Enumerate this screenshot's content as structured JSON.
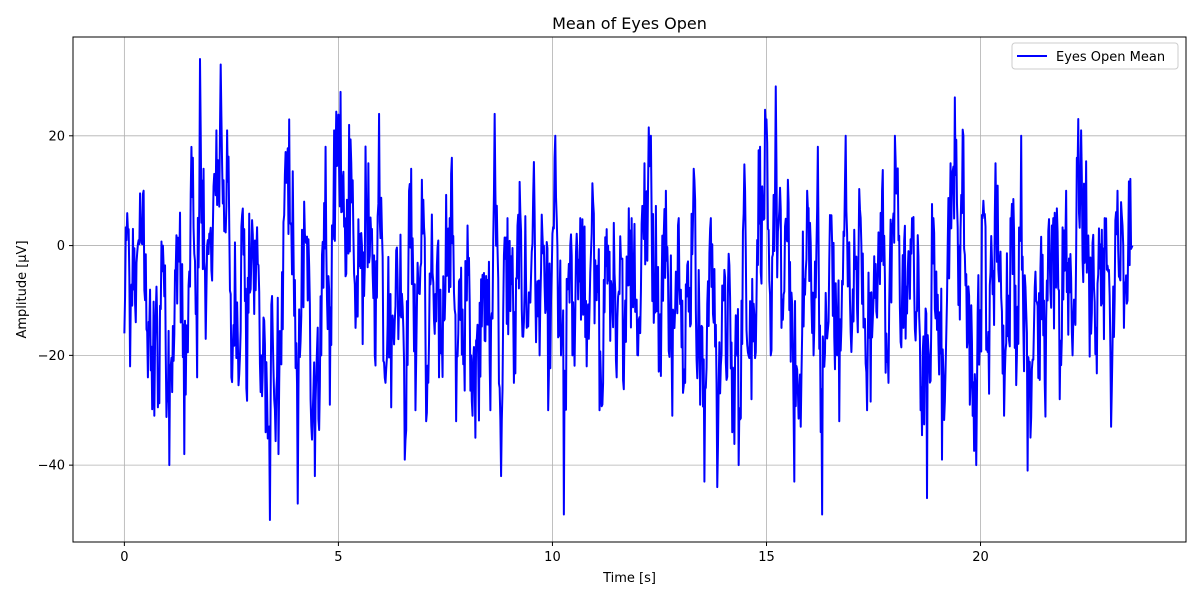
{
  "chart_data": {
    "type": "line",
    "title": "Mean of Eyes Open",
    "xlabel": "Time [s]",
    "ylabel": "Amplitude [µV]",
    "xlim": [
      -1.2,
      24.8
    ],
    "ylim": [
      -54,
      38
    ],
    "xticks": [
      0,
      5,
      10,
      15,
      20
    ],
    "yticks": [
      -40,
      -20,
      0,
      20
    ],
    "xtick_labels": [
      "0",
      "5",
      "10",
      "15",
      "20"
    ],
    "ytick_labels": [
      "−40",
      "−20",
      "0",
      "20"
    ],
    "grid": true,
    "legend": "top-right",
    "color": "#0000ff",
    "series": [
      {
        "name": "Eyes Open Mean",
        "sample_rate_hz": 60,
        "keypoints": [
          [
            0.0,
            -16
          ],
          [
            0.05,
            1
          ],
          [
            0.1,
            3
          ],
          [
            0.13,
            -22
          ],
          [
            0.22,
            -8
          ],
          [
            0.33,
            1
          ],
          [
            0.45,
            10
          ],
          [
            0.55,
            -24
          ],
          [
            0.7,
            -31
          ],
          [
            0.8,
            -25
          ],
          [
            0.9,
            0
          ],
          [
            1.05,
            -40
          ],
          [
            1.15,
            -21
          ],
          [
            1.3,
            6
          ],
          [
            1.4,
            -38
          ],
          [
            1.6,
            16
          ],
          [
            1.7,
            -24
          ],
          [
            1.77,
            34
          ],
          [
            1.85,
            14
          ],
          [
            1.9,
            -17
          ],
          [
            2.0,
            2
          ],
          [
            2.15,
            21
          ],
          [
            2.25,
            33
          ],
          [
            2.4,
            21
          ],
          [
            2.5,
            -24
          ],
          [
            2.65,
            -17
          ],
          [
            2.8,
            3
          ],
          [
            2.85,
            -26
          ],
          [
            3.0,
            2
          ],
          [
            3.2,
            -20
          ],
          [
            3.3,
            -34
          ],
          [
            3.4,
            -50
          ],
          [
            3.5,
            -28
          ],
          [
            3.6,
            -38
          ],
          [
            3.75,
            13
          ],
          [
            3.85,
            23
          ],
          [
            3.95,
            0
          ],
          [
            4.05,
            -47
          ],
          [
            4.2,
            8
          ],
          [
            4.35,
            -28
          ],
          [
            4.45,
            -42
          ],
          [
            4.6,
            -20
          ],
          [
            4.7,
            18
          ],
          [
            4.8,
            -29
          ],
          [
            4.9,
            21
          ],
          [
            5.05,
            28
          ],
          [
            5.15,
            5
          ],
          [
            5.25,
            22
          ],
          [
            5.4,
            -15
          ],
          [
            5.55,
            0
          ],
          [
            5.7,
            15
          ],
          [
            5.85,
            -20
          ],
          [
            5.95,
            24
          ],
          [
            6.1,
            -25
          ],
          [
            6.3,
            -18
          ],
          [
            6.45,
            2
          ],
          [
            6.55,
            -39
          ],
          [
            6.7,
            14
          ],
          [
            6.8,
            -30
          ],
          [
            6.95,
            12
          ],
          [
            7.05,
            -32
          ],
          [
            7.2,
            -5
          ],
          [
            7.35,
            -24
          ],
          [
            7.55,
            2
          ],
          [
            7.65,
            16
          ],
          [
            7.75,
            -32
          ],
          [
            8.0,
            -10
          ],
          [
            8.1,
            -20
          ],
          [
            8.2,
            -35
          ],
          [
            8.4,
            -5
          ],
          [
            8.55,
            -30
          ],
          [
            8.65,
            24
          ],
          [
            8.8,
            -42
          ],
          [
            8.95,
            5
          ],
          [
            9.1,
            -25
          ],
          [
            9.25,
            6
          ],
          [
            9.4,
            -15
          ],
          [
            9.55,
            9
          ],
          [
            9.7,
            -20
          ],
          [
            9.8,
            0
          ],
          [
            9.9,
            -30
          ],
          [
            10.05,
            16
          ],
          [
            10.2,
            -20
          ],
          [
            10.27,
            -49
          ],
          [
            10.35,
            -8
          ],
          [
            10.5,
            -15
          ],
          [
            10.65,
            5
          ],
          [
            10.8,
            -22
          ],
          [
            10.95,
            8
          ],
          [
            11.1,
            -30
          ],
          [
            11.3,
            0
          ],
          [
            11.5,
            -24
          ],
          [
            11.7,
            -10
          ],
          [
            11.85,
            5
          ],
          [
            12.0,
            -20
          ],
          [
            12.15,
            15
          ],
          [
            12.3,
            20
          ],
          [
            12.5,
            -22
          ],
          [
            12.65,
            10
          ],
          [
            12.8,
            -31
          ],
          [
            12.95,
            5
          ],
          [
            13.1,
            -25
          ],
          [
            13.3,
            14
          ],
          [
            13.45,
            -29
          ],
          [
            13.55,
            -43
          ],
          [
            13.7,
            5
          ],
          [
            13.85,
            -44
          ],
          [
            14.0,
            -10
          ],
          [
            14.2,
            -34
          ],
          [
            14.35,
            -40
          ],
          [
            14.5,
            10
          ],
          [
            14.65,
            -28
          ],
          [
            14.85,
            18
          ],
          [
            15.0,
            23
          ],
          [
            15.1,
            -20
          ],
          [
            15.22,
            29
          ],
          [
            15.35,
            -15
          ],
          [
            15.5,
            12
          ],
          [
            15.65,
            -43
          ],
          [
            15.8,
            -33
          ],
          [
            15.95,
            10
          ],
          [
            16.1,
            -20
          ],
          [
            16.2,
            18
          ],
          [
            16.3,
            -49
          ],
          [
            16.5,
            5
          ],
          [
            16.7,
            -32
          ],
          [
            16.85,
            20
          ],
          [
            17.0,
            -15
          ],
          [
            17.2,
            5
          ],
          [
            17.35,
            -30
          ],
          [
            17.5,
            -10
          ],
          [
            17.7,
            10
          ],
          [
            17.85,
            -25
          ],
          [
            18.0,
            20
          ],
          [
            18.2,
            -15
          ],
          [
            18.4,
            5
          ],
          [
            18.6,
            -30
          ],
          [
            18.75,
            -46
          ],
          [
            18.9,
            5
          ],
          [
            19.1,
            -39
          ],
          [
            19.3,
            15
          ],
          [
            19.4,
            27
          ],
          [
            19.5,
            0
          ],
          [
            19.6,
            20
          ],
          [
            19.75,
            -29
          ],
          [
            19.9,
            -40
          ],
          [
            20.05,
            5
          ],
          [
            20.2,
            -27
          ],
          [
            20.35,
            15
          ],
          [
            20.55,
            -31
          ],
          [
            20.7,
            5
          ],
          [
            20.85,
            -20
          ],
          [
            20.95,
            20
          ],
          [
            21.1,
            -41
          ],
          [
            21.3,
            -10
          ],
          [
            21.5,
            -25
          ],
          [
            21.7,
            5
          ],
          [
            21.85,
            -28
          ],
          [
            22.0,
            10
          ],
          [
            22.15,
            -20
          ],
          [
            22.25,
            16
          ],
          [
            22.35,
            21
          ],
          [
            22.5,
            0
          ],
          [
            22.7,
            -15
          ],
          [
            22.9,
            5
          ],
          [
            23.05,
            -33
          ],
          [
            23.2,
            10
          ],
          [
            23.35,
            -15
          ],
          [
            23.45,
            0
          ],
          [
            23.55,
            0
          ]
        ]
      }
    ]
  }
}
